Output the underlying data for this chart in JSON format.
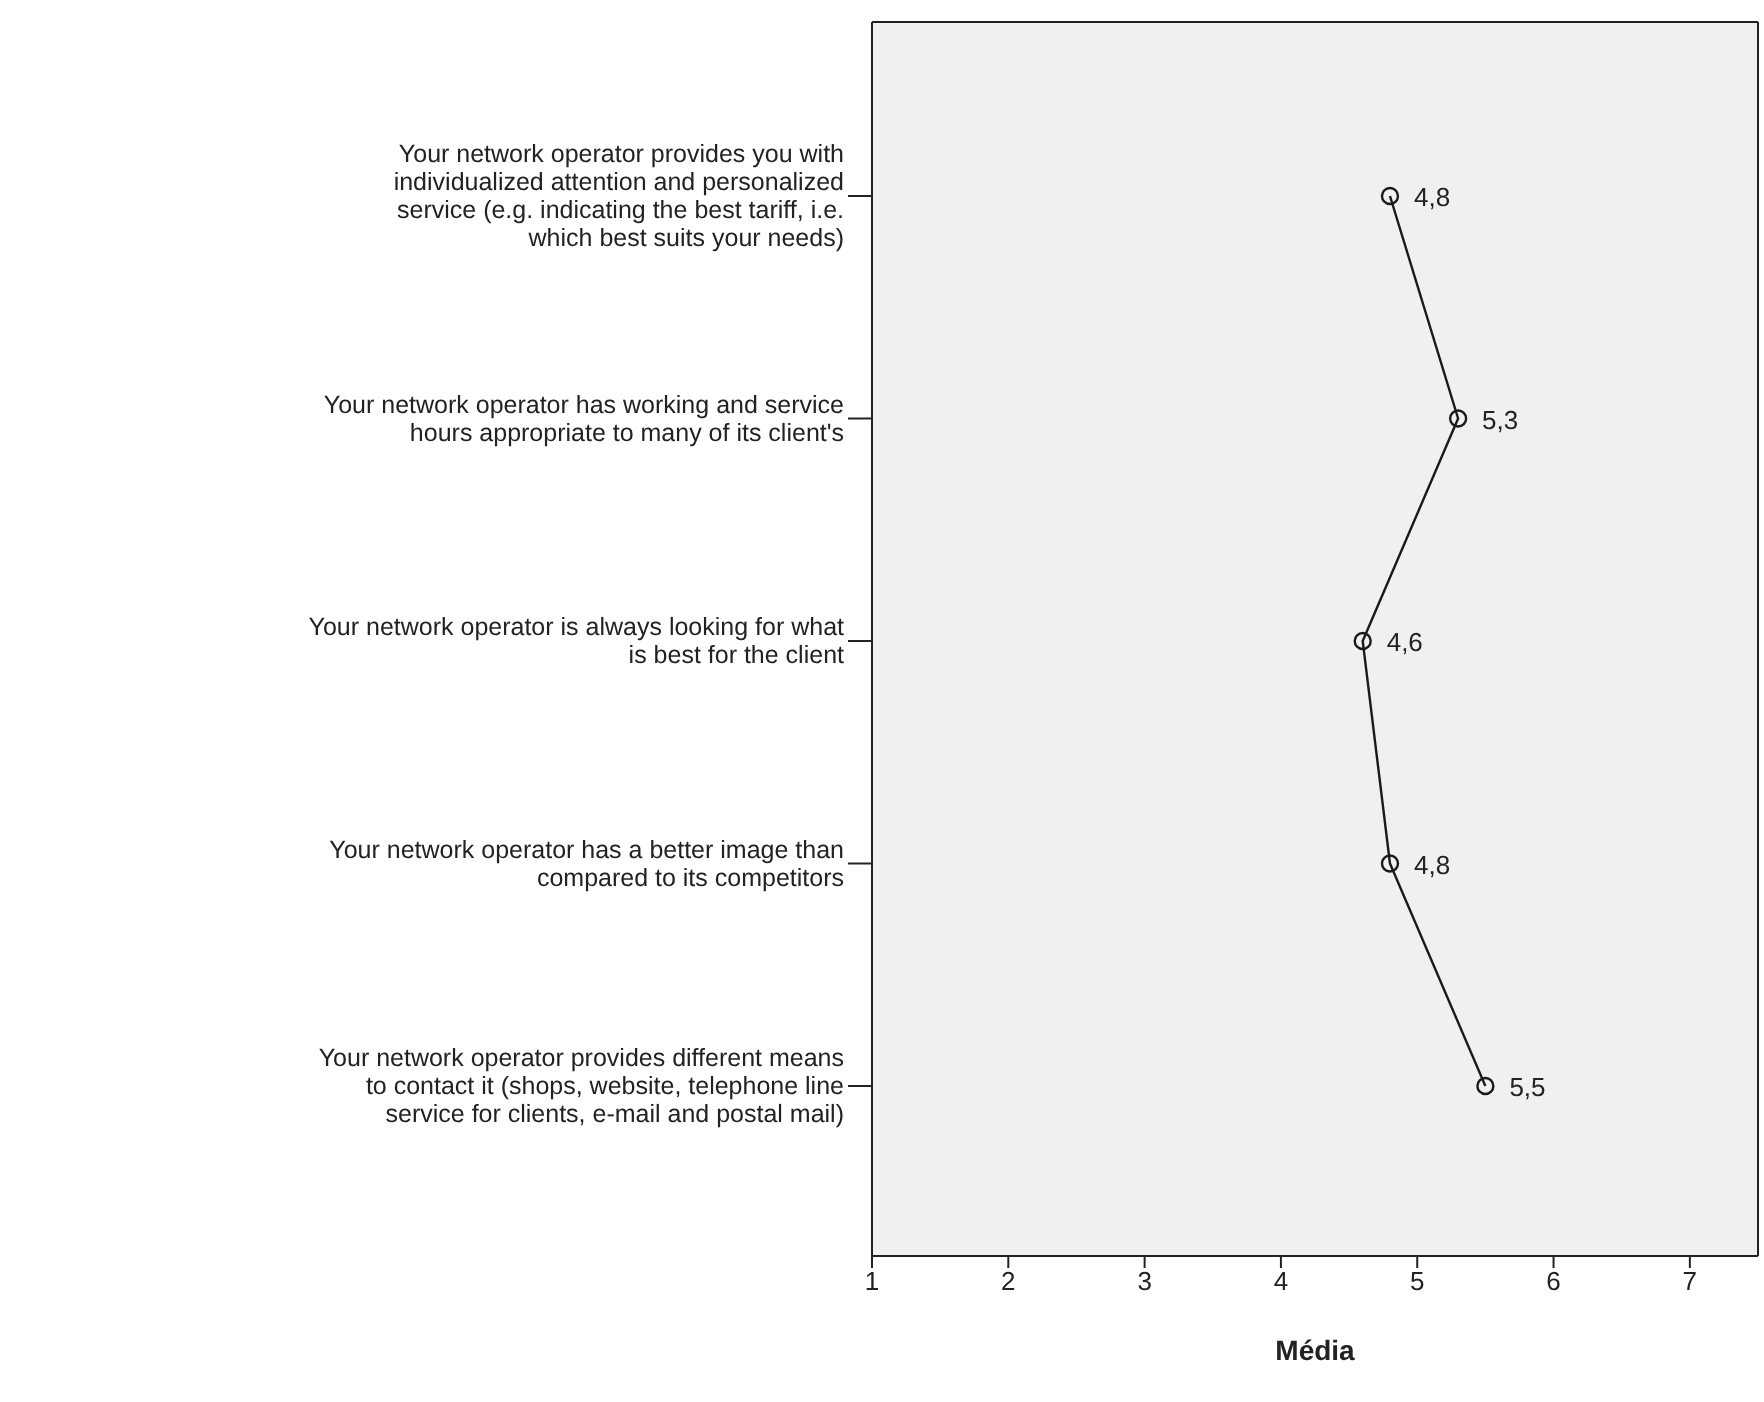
{
  "chart_data": {
    "type": "line",
    "orientation": "horizontal",
    "xlabel": "Média",
    "categories": [
      "Your network operator provides you with individualized attention and personalized service (e.g. indicating the best tariff, i.e. which best suits your needs)",
      "Your network operator has working and service hours appropriate to many of its client's",
      "Your network operator is always looking for what is best for the client",
      "Your network operator has a better image than compared to its competitors",
      "Your network operator provides different means to contact it (shops, website, telephone line service for clients, e-mail and postal mail)"
    ],
    "series": [
      {
        "color": "#1a1a1a",
        "values": [
          4.8,
          5.3,
          4.6,
          4.8,
          5.5
        ],
        "value_labels": [
          "4,8",
          "5,3",
          "4,6",
          "4,8",
          "5,5"
        ]
      }
    ],
    "xlim": [
      1,
      7.5
    ],
    "xticks": [
      1,
      2,
      3,
      4,
      5,
      6,
      7
    ],
    "marker": "circle",
    "line_style": "solid"
  }
}
